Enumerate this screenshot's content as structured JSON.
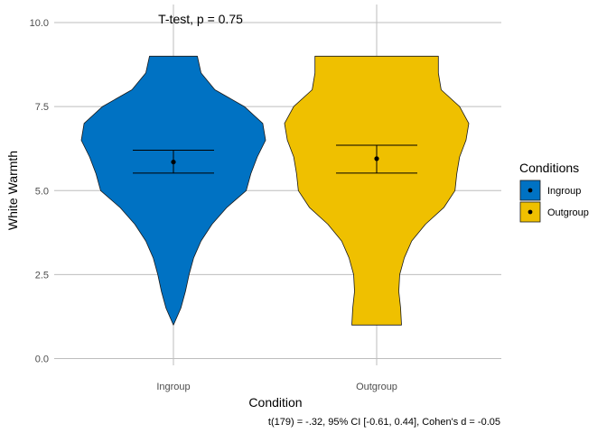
{
  "chart_data": {
    "type": "violin",
    "title": "",
    "annotation": "T-test, p = 0.75",
    "caption": "t(179) = -.32, 95% CI [-0.61, 0.44], Cohen's d = -0.05",
    "xlabel": "Condition",
    "ylabel": "White Warmth",
    "categories": [
      "Ingroup",
      "Outgroup"
    ],
    "ylim": [
      -0.2,
      10.5
    ],
    "yticks": [
      0.0,
      2.5,
      5.0,
      7.5,
      10.0
    ],
    "ytick_labels": [
      "0.0",
      "2.5",
      "5.0",
      "7.5",
      "10.0"
    ],
    "grid": true,
    "legend": {
      "title": "Conditions",
      "position": "right",
      "entries": [
        "Ingroup",
        "Outgroup"
      ]
    },
    "series": [
      {
        "name": "Ingroup",
        "color": "#0072c3",
        "min": 1.0,
        "max": 9.0,
        "mean": 5.85,
        "ci": [
          5.52,
          6.2
        ],
        "density": [
          [
            1.0,
            0.0
          ],
          [
            1.5,
            0.08
          ],
          [
            2.0,
            0.13
          ],
          [
            2.5,
            0.17
          ],
          [
            3.0,
            0.22
          ],
          [
            3.5,
            0.3
          ],
          [
            4.0,
            0.42
          ],
          [
            4.5,
            0.58
          ],
          [
            5.0,
            0.79
          ],
          [
            5.5,
            0.84
          ],
          [
            6.0,
            0.91
          ],
          [
            6.5,
            1.0
          ],
          [
            7.0,
            0.97
          ],
          [
            7.5,
            0.77
          ],
          [
            8.0,
            0.45
          ],
          [
            8.5,
            0.3
          ],
          [
            9.0,
            0.26
          ]
        ]
      },
      {
        "name": "Outgroup",
        "color": "#efc000",
        "min": 1.0,
        "max": 9.0,
        "mean": 5.95,
        "ci": [
          5.52,
          6.35
        ],
        "density": [
          [
            1.0,
            0.27
          ],
          [
            1.5,
            0.26
          ],
          [
            2.0,
            0.24
          ],
          [
            2.5,
            0.25
          ],
          [
            3.0,
            0.3
          ],
          [
            3.5,
            0.38
          ],
          [
            4.0,
            0.53
          ],
          [
            4.5,
            0.73
          ],
          [
            5.0,
            0.85
          ],
          [
            5.5,
            0.87
          ],
          [
            6.0,
            0.9
          ],
          [
            6.5,
            0.97
          ],
          [
            7.0,
            1.0
          ],
          [
            7.5,
            0.9
          ],
          [
            8.0,
            0.7
          ],
          [
            8.5,
            0.67
          ],
          [
            9.0,
            0.67
          ]
        ]
      }
    ]
  }
}
